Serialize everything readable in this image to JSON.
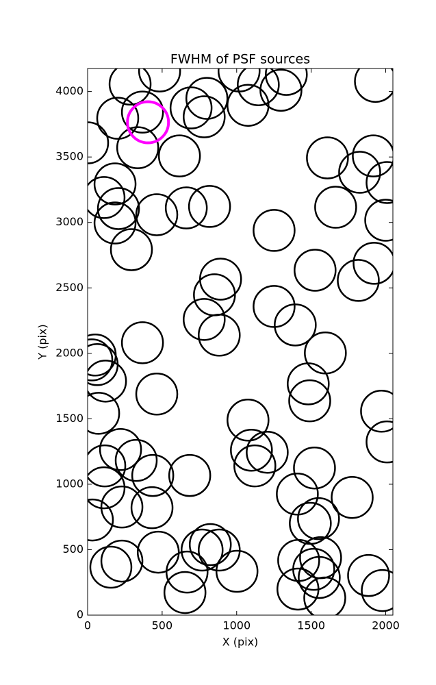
{
  "chart_data": {
    "type": "scatter",
    "title": "FWHM of PSF sources",
    "x_label": "X (pix)",
    "y_label": "Y (pix)",
    "xlim": [
      0,
      2048
    ],
    "ylim": [
      0,
      4176
    ],
    "xticks": [
      0,
      500,
      1000,
      1500,
      2000
    ],
    "yticks": [
      0,
      500,
      1000,
      1500,
      2000,
      2500,
      3000,
      3500,
      4000
    ],
    "grid": false,
    "series": [
      {
        "color": "#000000",
        "x": [
          285,
          483,
          368,
          202,
          336,
          0,
          616,
          694,
          800,
          782,
          1016,
          1076,
          1145,
          1297,
          1333,
          1931,
          1609,
          1825,
          1917,
          2009,
          2000,
          1664,
          184,
          110,
          207,
          184,
          464,
          662,
          818,
          294,
          1251,
          1526,
          1922,
          1816,
          892,
          851,
          782,
          883,
          1251,
          1393,
          1595,
          51,
          64,
          28,
          120,
          368,
          464,
          74,
          1480,
          1490,
          1972,
          2009,
          1076,
          1099,
          1205,
          1122,
          221,
          115,
          326,
          437,
          685,
          1522,
          1407,
          1775,
          110,
          230,
          432,
          32,
          1494,
          1549,
          474,
          230,
          156,
          667,
          653,
          823,
          768,
          883,
          1002,
          1416,
          1563,
          1554,
          1411,
          1591,
          1885,
          1977,
          1517
        ],
        "values": [
          4057,
          4157,
          3843,
          3796,
          3571,
          3608,
          3508,
          3875,
          3948,
          3807,
          4157,
          3895,
          4052,
          4010,
          4131,
          4078,
          3493,
          3383,
          3508,
          3305,
          3017,
          3116,
          3294,
          3190,
          3106,
          2996,
          3059,
          3111,
          3122,
          2792,
          2939,
          2635,
          2688,
          2557,
          2567,
          2447,
          2259,
          2139,
          2358,
          2217,
          2003,
          1987,
          1914,
          1950,
          1788,
          2081,
          1689,
          1542,
          1767,
          1637,
          1558,
          1323,
          1490,
          1260,
          1244,
          1140,
          1265,
          1140,
          1182,
          1067,
          1067,
          1124,
          925,
          899,
          973,
          826,
          821,
          727,
          701,
          737,
          481,
          413,
          366,
          329,
          173,
          539,
          497,
          497,
          335,
          418,
          439,
          288,
          199,
          131,
          303,
          188,
          350
        ]
      },
      {
        "color": "#ff00ff",
        "x": [
          405
        ],
        "values": [
          3765
        ]
      }
    ]
  }
}
